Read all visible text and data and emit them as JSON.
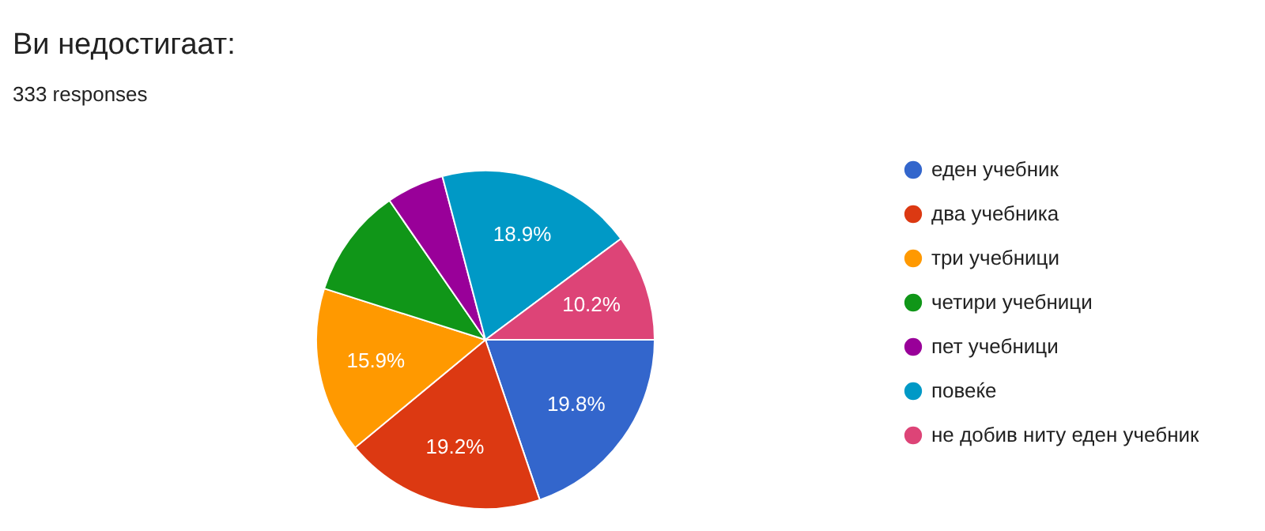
{
  "chart_data": {
    "type": "pie",
    "title": "Ви недостигаат:",
    "subtitle": "333 responses",
    "categories": [
      "еден учебник",
      "два учебника",
      "три учебници",
      "четири учебници",
      "пет учебници",
      "повеќе",
      "не добив ниту еден учебник"
    ],
    "values": [
      19.8,
      19.2,
      15.9,
      10.5,
      5.5,
      18.9,
      10.2
    ],
    "colors": [
      "#3366cc",
      "#dc3912",
      "#ff9900",
      "#109618",
      "#990099",
      "#0099c6",
      "#dd4477"
    ],
    "value_labels": [
      "19.8%",
      "19.2%",
      "15.9%",
      null,
      null,
      "18.9%",
      "10.2%"
    ],
    "legend": "right"
  }
}
